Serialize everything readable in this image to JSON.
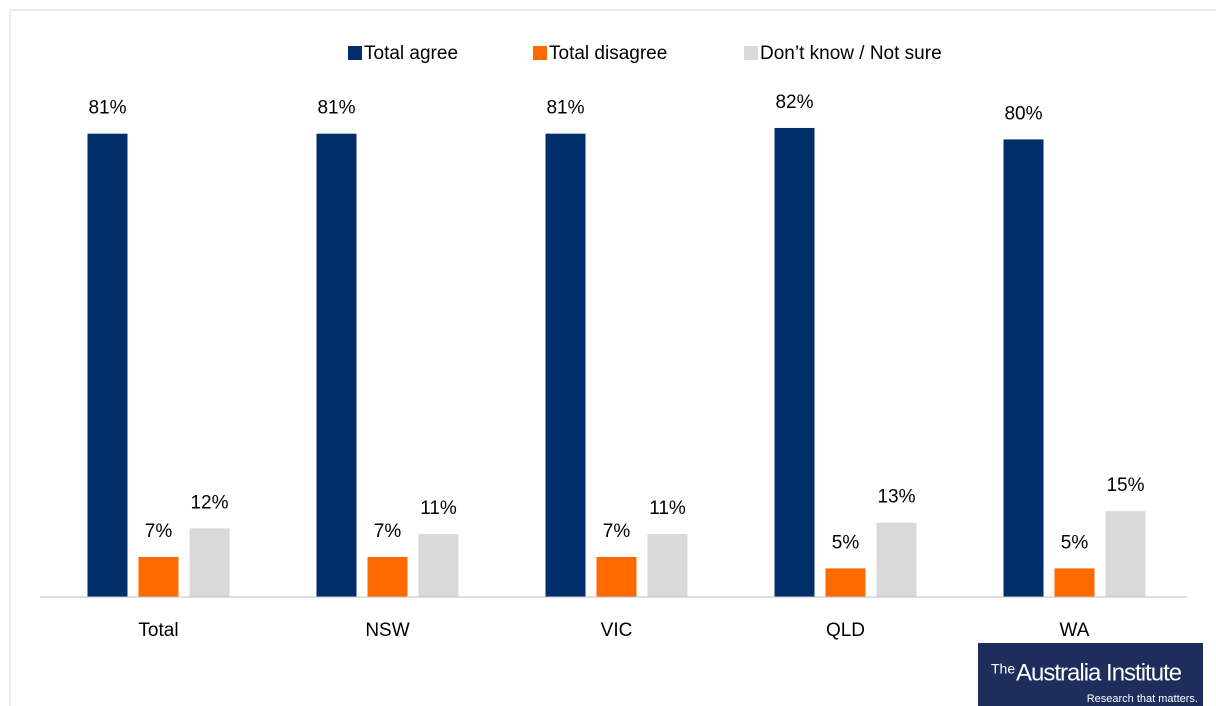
{
  "chart_data": {
    "type": "bar",
    "categories": [
      "Total",
      "NSW",
      "VIC",
      "QLD",
      "WA"
    ],
    "series": [
      {
        "name": "Total agree",
        "color": "#002f6c",
        "values": [
          81,
          81,
          81,
          82,
          80
        ],
        "value_labels": [
          "81%",
          "81%",
          "81%",
          "82%",
          "80%"
        ]
      },
      {
        "name": "Total disagree",
        "color": "#ff6a00",
        "values": [
          7,
          7,
          7,
          5,
          5
        ],
        "value_labels": [
          "7%",
          "7%",
          "7%",
          "5%",
          "5%"
        ]
      },
      {
        "name": "Don’t know / Not sure",
        "color": "#d9d9d9",
        "values": [
          12,
          11,
          11,
          13,
          15
        ],
        "value_labels": [
          "12%",
          "11%",
          "11%",
          "13%",
          "15%"
        ]
      }
    ],
    "ylim": [
      0,
      100
    ],
    "legend": "top",
    "grid": false
  },
  "logo": {
    "prefix": "The",
    "name": "Australia Institute",
    "tagline": "Research that matters."
  }
}
